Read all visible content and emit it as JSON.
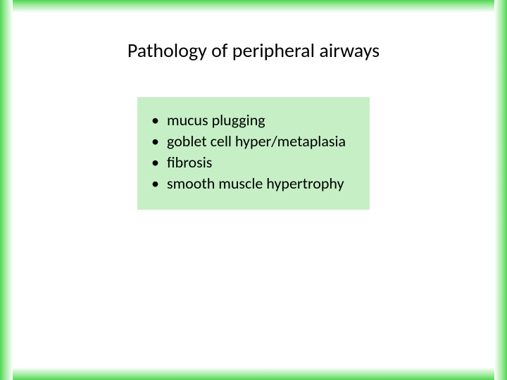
{
  "slide": {
    "title": "Pathology of peripheral airways",
    "title_fontsize": 28,
    "title_color": "#000000",
    "background_color": "#ffffff",
    "border_gradient_inner": "#ffffff",
    "border_gradient_outer": "#4fd84f",
    "content_box": {
      "background_color": "#c6efc6",
      "item_fontsize": 22,
      "item_color": "#000000",
      "line_height": 30,
      "bullet_char": "•",
      "items": [
        "mucus plugging",
        "goblet cell hyper/metaplasia",
        "fibrosis",
        "smooth muscle hypertrophy"
      ]
    }
  }
}
